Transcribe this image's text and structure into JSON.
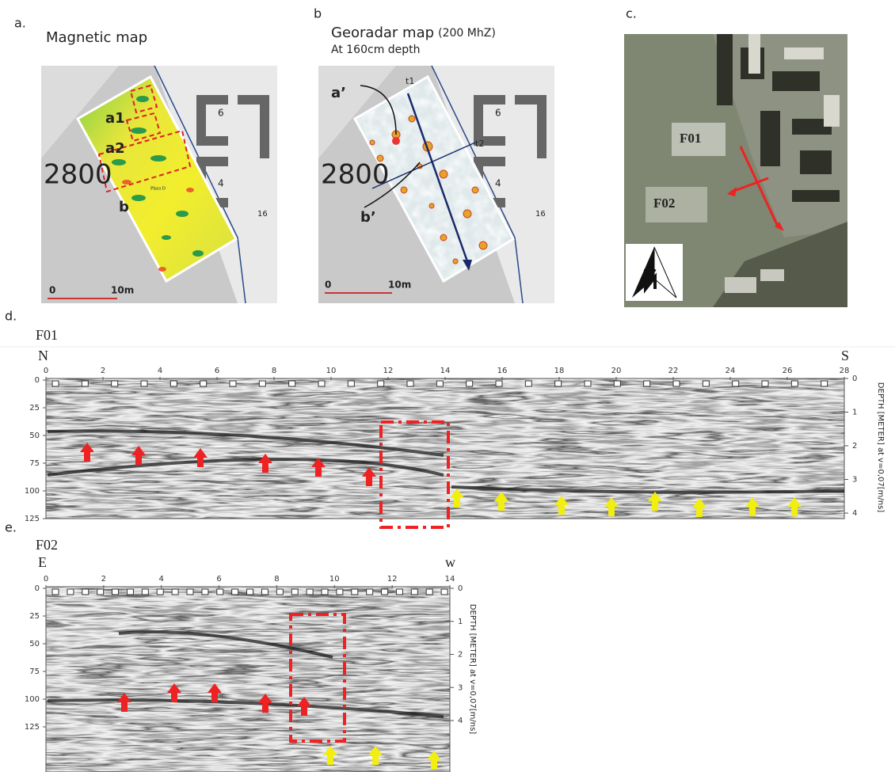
{
  "panel_a": {
    "letter": "a.",
    "title": "Magnetic map",
    "labels": [
      "a1",
      "a2",
      "b"
    ],
    "map_text": [
      "2800",
      "6",
      "4",
      "16",
      "Plaza D"
    ],
    "scale": [
      "0",
      "10m"
    ]
  },
  "panel_b": {
    "letter": "b",
    "title": "Georadar map",
    "title_unit": "(200 MhZ)",
    "subtitle": "At 160cm depth",
    "labels": [
      "a’",
      "b’",
      "t1",
      "t2"
    ],
    "map_text": [
      "2800",
      "6",
      "4",
      "16"
    ],
    "scale": [
      "0",
      "10m"
    ]
  },
  "panel_c": {
    "letter": "c.",
    "labels": [
      "F01",
      "F02"
    ]
  },
  "panel_d": {
    "letter": "d.",
    "profile": "F01",
    "start": "N",
    "end": "S",
    "x_ticks": [
      "0",
      "2",
      "4",
      "6",
      "8",
      "10",
      "12",
      "14",
      "16",
      "18",
      "20",
      "22",
      "24",
      "26",
      "28"
    ],
    "y_ticks": [
      "0",
      "25",
      "50",
      "75",
      "100",
      "125"
    ],
    "depth_ticks": [
      "0",
      "1",
      "2",
      "3",
      "4"
    ],
    "depth_label": "DEPTH [METER] at v=0,07[m/ns]"
  },
  "panel_e": {
    "letter": "e.",
    "profile": "F02",
    "start": "E",
    "end": "w",
    "x_ticks": [
      "0",
      "2",
      "4",
      "6",
      "8",
      "10",
      "12",
      "14"
    ],
    "y_ticks": [
      "0",
      "25",
      "50",
      "75",
      "100",
      "125"
    ],
    "depth_ticks": [
      "0",
      "1",
      "2",
      "3",
      "4"
    ],
    "depth_label": "DEPTH [METER] at v=0,07[m/ns]"
  }
}
